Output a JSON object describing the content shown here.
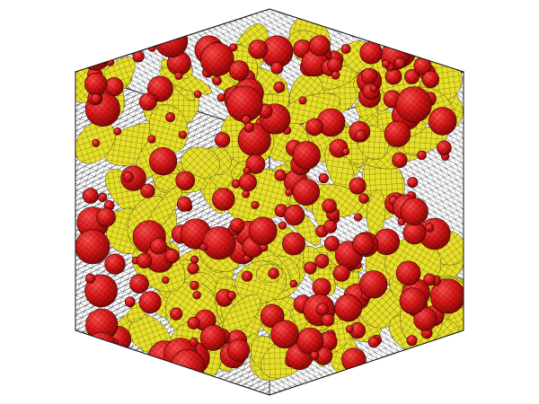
{
  "scene": {
    "kind": "3d-mesh-render",
    "description_objects": [
      "wireframe-cube",
      "yellow-matrix-mesh",
      "red-spherical-inclusions"
    ],
    "colors": {
      "background": "#ffffff",
      "wireframe": "#1a1a1a",
      "matrix_fill": "#e8e028",
      "matrix_edge": "#3a3a10",
      "inclusion_fill": "#d81818",
      "inclusion_edge": "#3a0000",
      "inclusion_highlight": "#ff5050"
    },
    "inclusion_count_approx": 260
  }
}
